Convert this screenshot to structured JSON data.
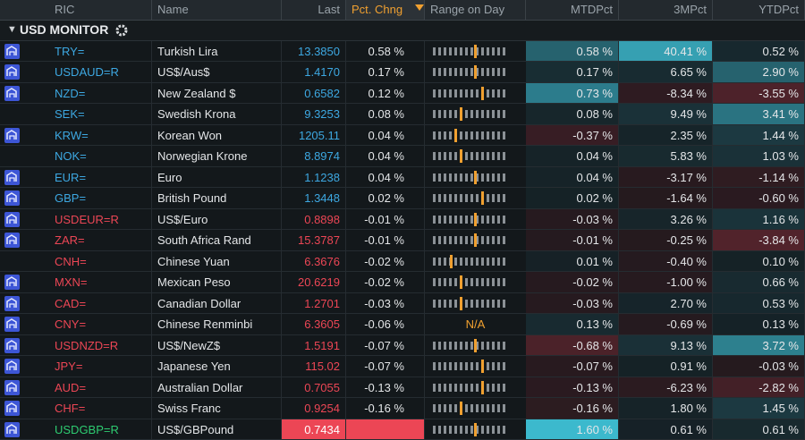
{
  "header": {
    "columns": [
      "RIC",
      "Name",
      "Last",
      "Pct. Chng",
      "Range on Day",
      "MTDPct",
      "3MPct",
      "YTDPct"
    ]
  },
  "section": "USD MONITOR",
  "colors": {
    "up": "#3da8e2",
    "down": "#ec4655",
    "flat": "#2ecc71"
  },
  "rows": [
    {
      "ric": "TRY=",
      "name": "Turkish Lira",
      "last": "13.3850",
      "pct": "0.58 %",
      "range": 0.55,
      "mtd": "0.58 %",
      "m3": "40.41 %",
      "ytd": "0.52 %",
      "dir": "up",
      "news": true
    },
    {
      "ric": "USDAUD=R",
      "name": "US$/Aus$",
      "last": "1.4170",
      "pct": "0.17 %",
      "range": 0.55,
      "mtd": "0.17 %",
      "m3": "6.65 %",
      "ytd": "2.90 %",
      "dir": "up",
      "news": true
    },
    {
      "ric": "NZD=",
      "name": "New Zealand $",
      "last": "0.6582",
      "pct": "0.12 %",
      "range": 0.64,
      "mtd": "0.73 %",
      "m3": "-8.34 %",
      "ytd": "-3.55 %",
      "dir": "up",
      "news": true
    },
    {
      "ric": "SEK=",
      "name": "Swedish Krona",
      "last": "9.3253",
      "pct": "0.08 %",
      "range": 0.36,
      "mtd": "0.08 %",
      "m3": "9.49 %",
      "ytd": "3.41 %",
      "dir": "up",
      "news": false
    },
    {
      "ric": "KRW=",
      "name": "Korean Won",
      "last": "1205.11",
      "pct": "0.04 %",
      "range": 0.29,
      "mtd": "-0.37 %",
      "m3": "2.35 %",
      "ytd": "1.44 %",
      "dir": "up",
      "news": true
    },
    {
      "ric": "NOK=",
      "name": "Norwegian Krone",
      "last": "8.8974",
      "pct": "0.04 %",
      "range": 0.36,
      "mtd": "0.04 %",
      "m3": "5.83 %",
      "ytd": "1.03 %",
      "dir": "up",
      "news": false
    },
    {
      "ric": "EUR=",
      "name": "Euro",
      "last": "1.1238",
      "pct": "0.04 %",
      "range": 0.55,
      "mtd": "0.04 %",
      "m3": "-3.17 %",
      "ytd": "-1.14 %",
      "dir": "up",
      "news": true
    },
    {
      "ric": "GBP=",
      "name": "British Pound",
      "last": "1.3448",
      "pct": "0.02 %",
      "range": 0.64,
      "mtd": "0.02 %",
      "m3": "-1.64 %",
      "ytd": "-0.60 %",
      "dir": "up",
      "news": true
    },
    {
      "ric": "USDEUR=R",
      "name": "US$/Euro",
      "last": "0.8898",
      "pct": "-0.01 %",
      "range": 0.55,
      "mtd": "-0.03 %",
      "m3": "3.26 %",
      "ytd": "1.16 %",
      "dir": "down",
      "news": true
    },
    {
      "ric": "ZAR=",
      "name": "South Africa Rand",
      "last": "15.3787",
      "pct": "-0.01 %",
      "range": 0.55,
      "mtd": "-0.01 %",
      "m3": "-0.25 %",
      "ytd": "-3.84 %",
      "dir": "down",
      "news": true
    },
    {
      "ric": "CNH=",
      "name": "Chinese Yuan",
      "last": "6.3676",
      "pct": "-0.02 %",
      "range": 0.23,
      "mtd": "0.01 %",
      "m3": "-0.40 %",
      "ytd": "0.10 %",
      "dir": "down",
      "news": false
    },
    {
      "ric": "MXN=",
      "name": "Mexican Peso",
      "last": "20.6219",
      "pct": "-0.02 %",
      "range": 0.36,
      "mtd": "-0.02 %",
      "m3": "-1.00 %",
      "ytd": "0.66 %",
      "dir": "down",
      "news": true
    },
    {
      "ric": "CAD=",
      "name": "Canadian Dollar",
      "last": "1.2701",
      "pct": "-0.03 %",
      "range": 0.36,
      "mtd": "-0.03 %",
      "m3": "2.70 %",
      "ytd": "0.53 %",
      "dir": "down",
      "news": true
    },
    {
      "ric": "CNY=",
      "name": "Chinese Renminbi",
      "last": "6.3605",
      "pct": "-0.06 %",
      "range": "N/A",
      "mtd": "0.13 %",
      "m3": "-0.69 %",
      "ytd": "0.13 %",
      "dir": "down",
      "news": true
    },
    {
      "ric": "USDNZD=R",
      "name": "US$/NewZ$",
      "last": "1.5191",
      "pct": "-0.07 %",
      "range": 0.55,
      "mtd": "-0.68 %",
      "m3": "9.13 %",
      "ytd": "3.72 %",
      "dir": "down",
      "news": true
    },
    {
      "ric": "JPY=",
      "name": "Japanese Yen",
      "last": "115.02",
      "pct": "-0.07 %",
      "range": 0.64,
      "mtd": "-0.07 %",
      "m3": "0.91 %",
      "ytd": "-0.03 %",
      "dir": "down",
      "news": true
    },
    {
      "ric": "AUD=",
      "name": "Australian Dollar",
      "last": "0.7055",
      "pct": "-0.13 %",
      "range": 0.64,
      "mtd": "-0.13 %",
      "m3": "-6.23 %",
      "ytd": "-2.82 %",
      "dir": "down",
      "news": true
    },
    {
      "ric": "CHF=",
      "name": "Swiss Franc",
      "last": "0.9254",
      "pct": "-0.16 %",
      "range": 0.36,
      "mtd": "-0.16 %",
      "m3": "1.80 %",
      "ytd": "1.45 %",
      "dir": "down",
      "news": true
    },
    {
      "ric": "USDGBP=R",
      "name": "US$/GBPound",
      "last": "0.7434",
      "pct": "",
      "range": 0.55,
      "mtd": "1.60 %",
      "m3": "0.61 %",
      "ytd": "0.61 %",
      "dir": "flat",
      "news": true,
      "flash": true
    }
  ]
}
